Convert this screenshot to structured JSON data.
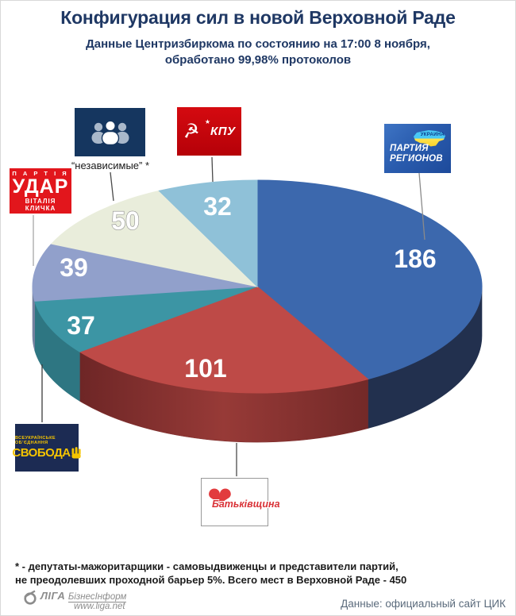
{
  "header": {
    "title": "Конфигурация сил в новой Верховной Раде",
    "subtitle_line1": "Данные Центризбиркома по состоянию на 17:00 8 ноября,",
    "subtitle_line2": "обработано 99,98% протоколов"
  },
  "chart_data": {
    "type": "pie",
    "title": "Конфигурация сил в новой Верховной Раде",
    "style": "3d-pie",
    "start_angle_deg": 0,
    "direction": "clockwise",
    "total_seats_in_rada": 450,
    "slices": [
      {
        "party": "Партия Регионов",
        "value": 186,
        "color": "#3C68AD",
        "side_color": "#22304E"
      },
      {
        "party": "Батьківщина",
        "value": 101,
        "color": "#BE4A47",
        "side_color": "#7E2D2C",
        "side_gradient": [
          "#6E2626",
          "#973A37",
          "#732928"
        ]
      },
      {
        "party": "Свобода",
        "value": 37,
        "color": "#3C95A4",
        "side_color": "#2E7682"
      },
      {
        "party": "УДАР",
        "value": 39,
        "color": "#91A0CB",
        "side_color": "#74819F"
      },
      {
        "party": "независимые",
        "value": 50,
        "color": "#E9EDDB",
        "side_color": "#C9CDB9",
        "label_outline": true
      },
      {
        "party": "КПУ",
        "value": 32,
        "color": "#8FC1D8",
        "side_color": "#6E9BB0"
      }
    ]
  },
  "logos": {
    "regions": {
      "line1": "ПАРТИЯ",
      "line2": "РЕГИОНОВ",
      "map_label": "УКРАИНА"
    },
    "kpu": {
      "name": "КПУ"
    },
    "independents": {
      "caption": "“независимые” *"
    },
    "udar": {
      "top": "П А Р Т І Я",
      "name": "УДАР",
      "bottom": "ВІТАЛІЯ КЛИЧКА"
    },
    "svoboda": {
      "top": "ВСЕУКРАЇНСЬКЕ ОБ’ЄДНАННЯ",
      "name": "СВОБОДА"
    },
    "batkivshchyna": {
      "name": "Батьківщина"
    }
  },
  "footnote": {
    "line1": "* - депутаты-мажоритарщики - самовыдвиженцы и представители партий,",
    "line2": "не преодолевших проходной барьер 5%. Всего мест в Верховной Раде - 450"
  },
  "footer": {
    "liga": {
      "brand": "ЛІГА",
      "brand_sub": "БізнесІнформ",
      "url": "www.liga.net"
    },
    "source": "Данные: официальный сайт ЦИК"
  }
}
